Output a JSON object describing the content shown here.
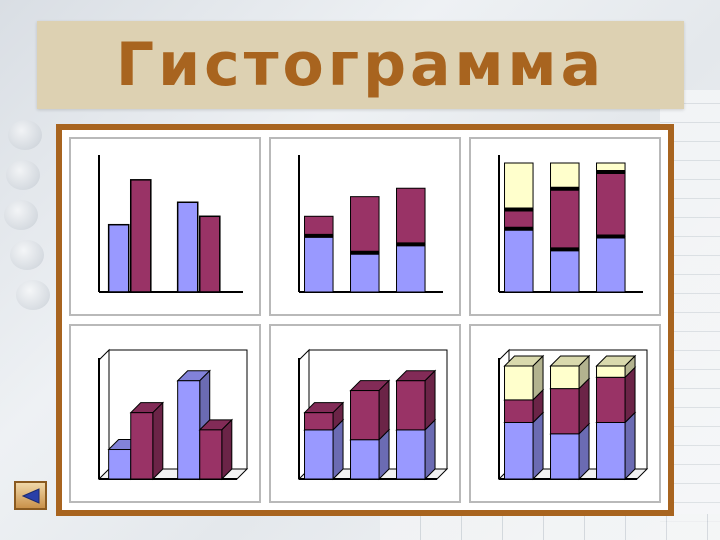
{
  "slide": {
    "title": "Гистограмма"
  },
  "colors": {
    "title_background": "#ddd1b2",
    "title_text": "#a8641f",
    "frame_border": "#a8641f",
    "series_blue": "#9999ff",
    "series_maroon": "#993366",
    "series_cream": "#ffffcc"
  },
  "chart_data": [
    {
      "type": "bar",
      "variant": "clustered",
      "dimension": "2d",
      "series": [
        {
          "name": "",
          "values": [
            2.4,
            3.2
          ]
        },
        {
          "name": "",
          "values": [
            4.0,
            2.7
          ]
        }
      ],
      "ylim": [
        0,
        4.6
      ]
    },
    {
      "type": "bar",
      "variant": "stacked",
      "dimension": "2d",
      "series": [
        {
          "name": "",
          "values": [
            2.0,
            1.4,
            1.7
          ]
        },
        {
          "name": "",
          "values": [
            0.7,
            2.0,
            2.0
          ]
        }
      ],
      "ylim": [
        0,
        4.6
      ]
    },
    {
      "type": "bar",
      "variant": "stacked-100",
      "dimension": "2d",
      "series": [
        {
          "name": "",
          "values": [
            49,
            33,
            43
          ]
        },
        {
          "name": "",
          "values": [
            15,
            47,
            50
          ]
        },
        {
          "name": "",
          "values": [
            36,
            20,
            7
          ]
        }
      ],
      "ylim": [
        0,
        100
      ]
    },
    {
      "type": "bar",
      "variant": "clustered",
      "dimension": "3d",
      "series": [
        {
          "name": "",
          "values": [
            1.2,
            4.0
          ]
        },
        {
          "name": "",
          "values": [
            2.7,
            2.0
          ]
        }
      ],
      "ylim": [
        0,
        4.6
      ]
    },
    {
      "type": "bar",
      "variant": "stacked",
      "dimension": "3d",
      "series": [
        {
          "name": "",
          "values": [
            2.0,
            1.6,
            2.0
          ]
        },
        {
          "name": "",
          "values": [
            0.7,
            2.0,
            2.0
          ]
        }
      ],
      "ylim": [
        0,
        4.6
      ]
    },
    {
      "type": "bar",
      "variant": "stacked-100",
      "dimension": "3d",
      "series": [
        {
          "name": "",
          "values": [
            50,
            40,
            50
          ]
        },
        {
          "name": "",
          "values": [
            20,
            40,
            40
          ]
        },
        {
          "name": "",
          "values": [
            30,
            20,
            10
          ]
        }
      ],
      "ylim": [
        0,
        100
      ]
    }
  ],
  "navigation": {
    "back_icon": "triangle-left-icon"
  }
}
